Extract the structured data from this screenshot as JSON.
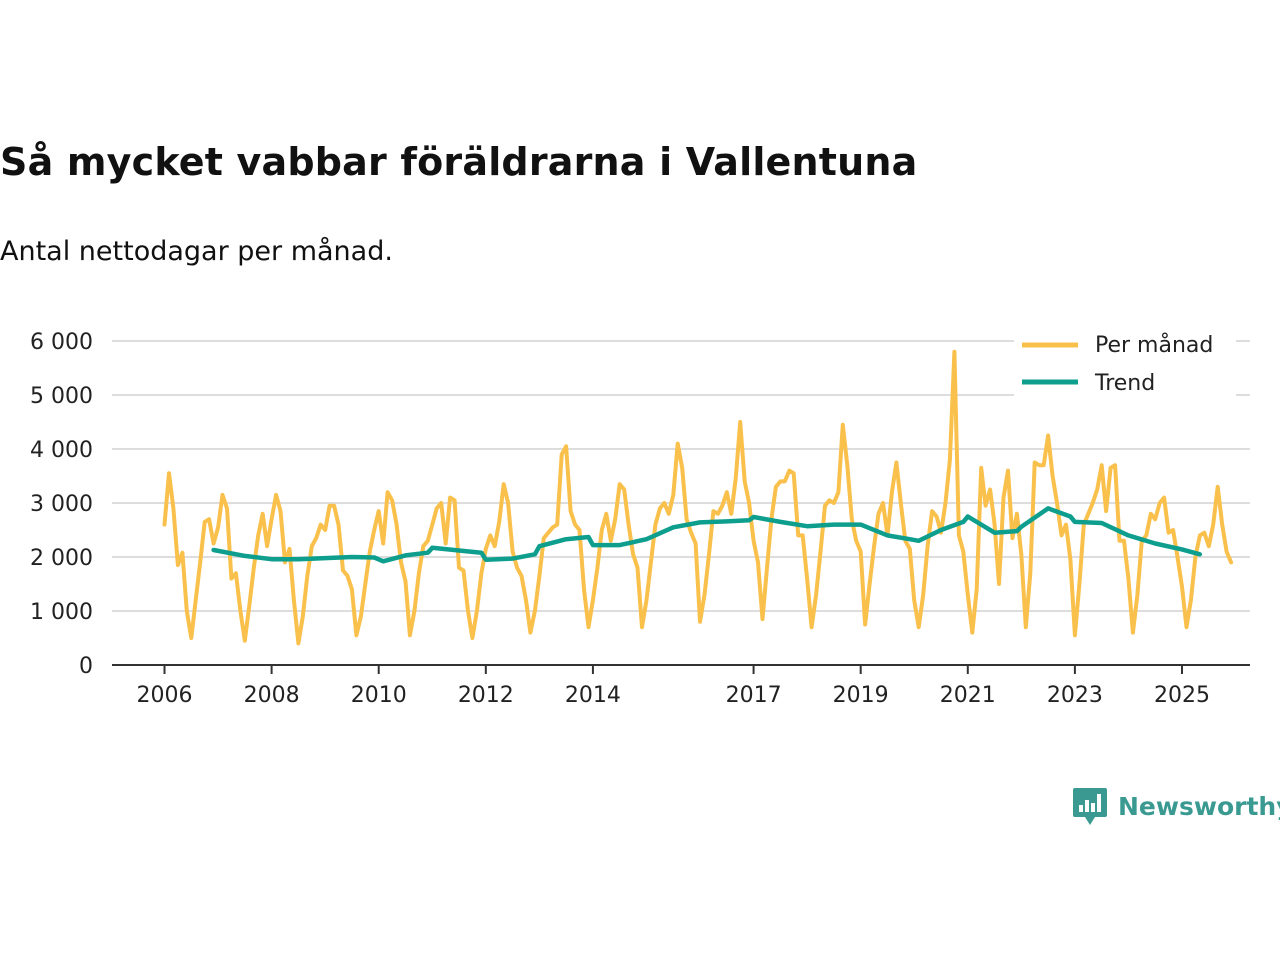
{
  "title": "Så mycket vabbar föräldrarna i Vallentuna",
  "subtitle": "Antal nettodagar per månad.",
  "brand": "Newsworthy",
  "colors": {
    "monthly": "#f9c04c",
    "trend": "#0e9e8e",
    "grid": "#dddddd",
    "axis": "#333333"
  },
  "chart_data": {
    "type": "line",
    "ylim": [
      0,
      6000
    ],
    "y_ticks": [
      0,
      1000,
      2000,
      3000,
      4000,
      5000,
      6000
    ],
    "y_tick_labels": [
      "0",
      "1 000",
      "2 000",
      "3 000",
      "4 000",
      "5 000",
      "6 000"
    ],
    "x_ticks": [
      2006,
      2008,
      2010,
      2012,
      2014,
      2017,
      2019,
      2021,
      2023,
      2025
    ],
    "x_tick_labels": [
      "2006",
      "2008",
      "2010",
      "2012",
      "2014",
      "2017",
      "2019",
      "2021",
      "2023",
      "2025"
    ],
    "legend": {
      "position": "top-right",
      "items": [
        "Per månad",
        "Trend"
      ]
    },
    "series": [
      {
        "name": "Per månad",
        "start": 2006.0,
        "step_months": 1,
        "values": [
          2600,
          3550,
          2900,
          1850,
          2080,
          1000,
          500,
          1200,
          1900,
          2650,
          2700,
          2250,
          2550,
          3150,
          2900,
          1600,
          1700,
          1000,
          450,
          1100,
          1800,
          2400,
          2800,
          2200,
          2700,
          3150,
          2850,
          1900,
          2150,
          1200,
          400,
          900,
          1650,
          2200,
          2350,
          2600,
          2500,
          2950,
          2950,
          2600,
          1750,
          1650,
          1400,
          550,
          900,
          1500,
          2100,
          2500,
          2850,
          2250,
          3200,
          3050,
          2600,
          1900,
          1550,
          550,
          1000,
          1700,
          2200,
          2300,
          2600,
          2900,
          3000,
          2250,
          3100,
          3050,
          1800,
          1750,
          1000,
          500,
          1000,
          1700,
          2150,
          2400,
          2200,
          2650,
          3350,
          3000,
          2100,
          1800,
          1650,
          1200,
          600,
          1000,
          1650,
          2350,
          2450,
          2550,
          2600,
          3900,
          4050,
          2850,
          2600,
          2500,
          1400,
          700,
          1200,
          1800,
          2500,
          2800,
          2300,
          2700,
          3350,
          3250,
          2600,
          2050,
          1800,
          700,
          1200,
          1900,
          2600,
          2900,
          3000,
          2800,
          3150,
          4100,
          3650,
          2700,
          2450,
          2250,
          800,
          1300,
          2050,
          2850,
          2800,
          2950,
          3200,
          2800,
          3450,
          4500,
          3400,
          3000,
          2300,
          1900,
          850,
          1800,
          2700,
          3300,
          3400,
          3400,
          3600,
          3550,
          2400,
          2400,
          1600,
          700,
          1300,
          2100,
          2950,
          3050,
          3000,
          3200,
          4450,
          3700,
          2700,
          2300,
          2100,
          750,
          1500,
          2200,
          2800,
          3000,
          2400,
          3200,
          3750,
          3000,
          2300,
          2150,
          1200,
          700,
          1300,
          2200,
          2850,
          2750,
          2450,
          3000,
          3800,
          5800,
          2400,
          2100,
          1300,
          600,
          1400,
          3650,
          2950,
          3250,
          2600,
          1500,
          3100,
          3600,
          2350,
          2800,
          2050,
          700,
          1700,
          3750,
          3700,
          3700,
          4250,
          3500,
          3000,
          2400,
          2600,
          1950,
          550,
          1500,
          2600,
          2800,
          3000,
          3250,
          3700,
          2850,
          3650,
          3700,
          2300,
          2300,
          1600,
          600,
          1300,
          2300,
          2400,
          2800,
          2700,
          3000,
          3100,
          2450,
          2500,
          2000,
          1450,
          700,
          1200,
          2000,
          2400,
          2450,
          2200,
          2600,
          3300,
          2600,
          2100,
          1900
        ]
      },
      {
        "name": "Trend",
        "x": [
          2006.917,
          2007.5,
          2008.0,
          2008.5,
          2009.0,
          2009.5,
          2009.917,
          2010.083,
          2010.5,
          2010.917,
          2011.0,
          2011.5,
          2011.917,
          2012.0,
          2012.5,
          2012.917,
          2013.0,
          2013.5,
          2013.917,
          2014.0,
          2014.5,
          2015.0,
          2015.5,
          2016.0,
          2016.5,
          2016.917,
          2017.0,
          2017.5,
          2018.0,
          2018.5,
          2019.0,
          2019.5,
          2019.917,
          2020.083,
          2020.5,
          2020.917,
          2021.0,
          2021.5,
          2021.917,
          2022.0,
          2022.5,
          2022.917,
          2023.0,
          2023.5,
          2024.0,
          2024.5,
          2025.0,
          2025.333
        ],
        "values": [
          2130,
          2020,
          1960,
          1960,
          1980,
          2000,
          1990,
          1920,
          2030,
          2080,
          2170,
          2120,
          2080,
          1950,
          1970,
          2050,
          2200,
          2330,
          2370,
          2220,
          2220,
          2330,
          2550,
          2640,
          2660,
          2680,
          2740,
          2650,
          2570,
          2600,
          2600,
          2400,
          2330,
          2300,
          2500,
          2650,
          2750,
          2450,
          2480,
          2560,
          2900,
          2750,
          2650,
          2630,
          2400,
          2250,
          2140,
          2050
        ]
      }
    ]
  }
}
